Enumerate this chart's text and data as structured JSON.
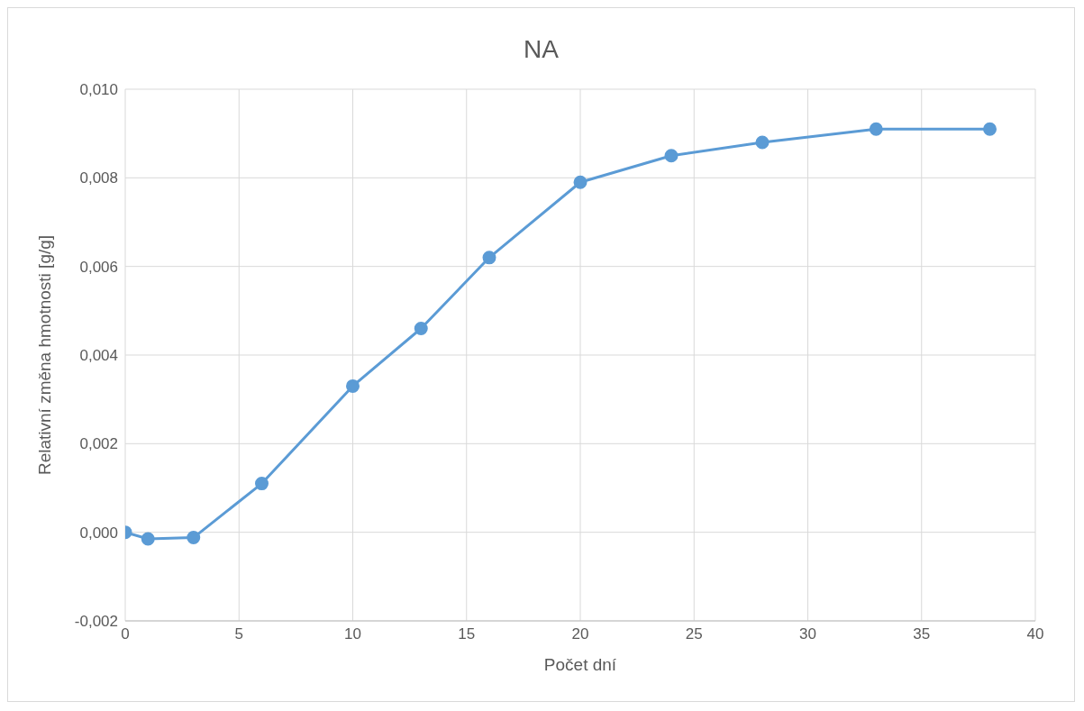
{
  "chart_data": {
    "type": "line",
    "title": "NA",
    "xlabel": "Počet dní",
    "ylabel": "Relativní změna hmotnosti [g/g]",
    "x": [
      0,
      1,
      3,
      6,
      10,
      13,
      16,
      20,
      24,
      28,
      33,
      38
    ],
    "series": [
      {
        "color": "#5b9bd5",
        "values": [
          0,
          -0.00015,
          -0.00012,
          0.0011,
          0.0033,
          0.0046,
          0.0062,
          0.0079,
          0.0085,
          0.0088,
          0.0091,
          0.0091
        ]
      }
    ],
    "xlim": [
      0,
      40
    ],
    "xticks": [
      0,
      5,
      10,
      15,
      20,
      25,
      30,
      35,
      40
    ],
    "ylim": [
      -0.002,
      0.01
    ],
    "yticks": [
      {
        "value": -0.002,
        "label": "-0,002"
      },
      {
        "value": 0,
        "label": "0,000"
      },
      {
        "value": 0.002,
        "label": "0,002"
      },
      {
        "value": 0.004,
        "label": "0,004"
      },
      {
        "value": 0.006,
        "label": "0,006"
      },
      {
        "value": 0.008,
        "label": "0,008"
      },
      {
        "value": 0.01,
        "label": "0,010"
      }
    ],
    "grid": true,
    "marker": "circle",
    "line_style": "solid"
  }
}
